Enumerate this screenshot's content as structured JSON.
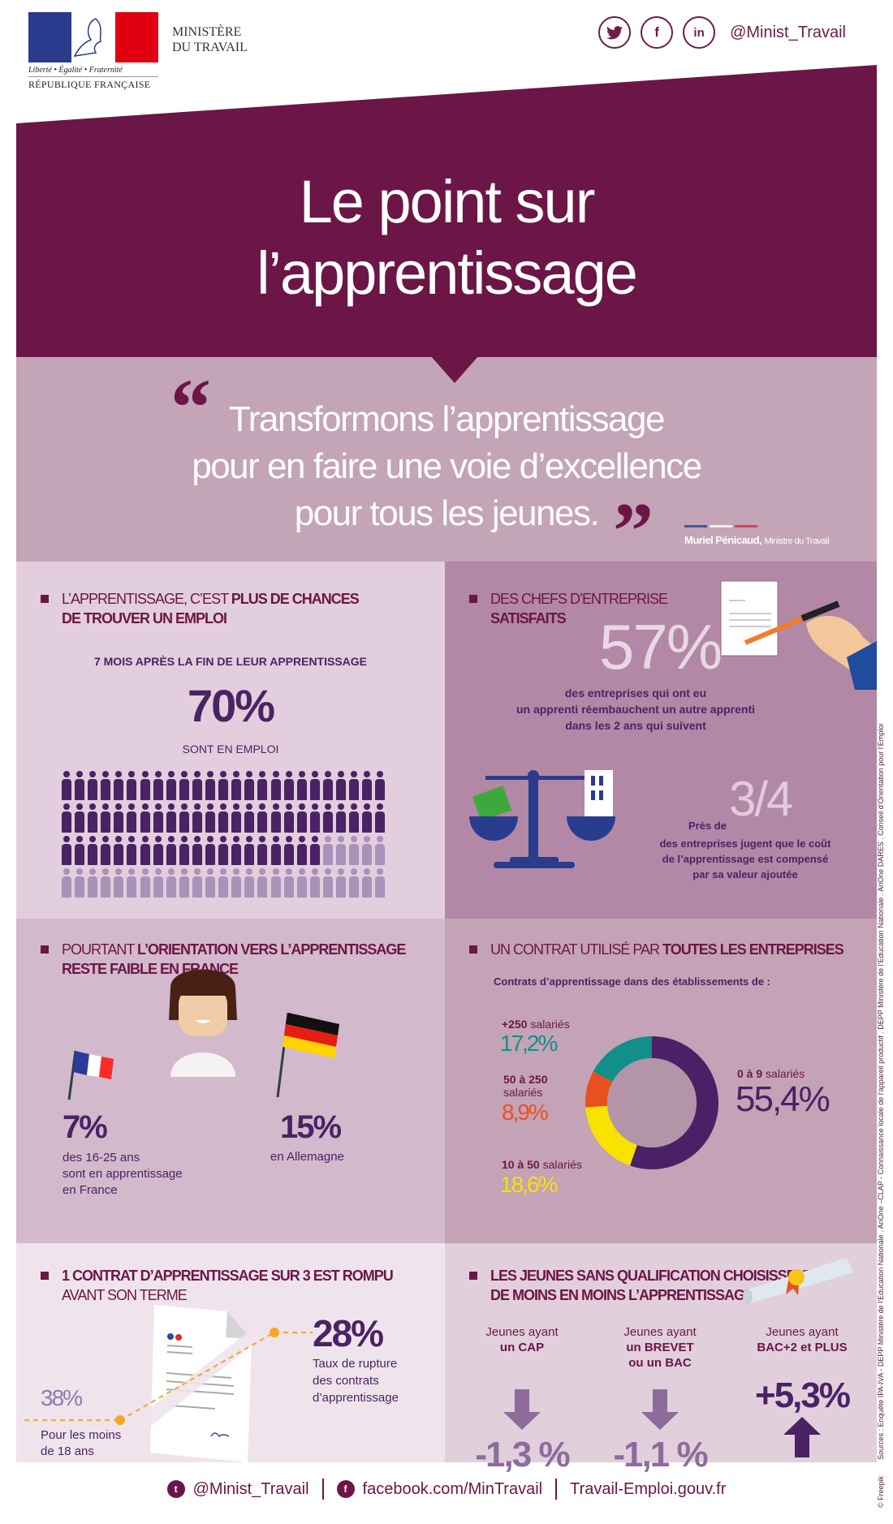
{
  "header": {
    "logo": {
      "motto": "Liberté • Égalité • Fraternité",
      "republic": "RÉPUBLIQUE FRANÇAISE"
    },
    "ministry_line1": "MINISTÈRE",
    "ministry_line2": "DU TRAVAIL",
    "social": {
      "twitter_icon": "twitter",
      "facebook_glyph": "f",
      "linkedin_glyph": "in",
      "handle": "@Minist_Travail"
    }
  },
  "title": {
    "line1": "Le point sur",
    "line2": "l’apprentissage"
  },
  "quote": {
    "open_mark": "“",
    "close_mark": "”",
    "line1": "Transformons l’apprentissage",
    "line2": "pour en faire une voie d’excellence",
    "line3": "pour tous les jeunes.",
    "author_name": "Muriel Pénicaud,",
    "author_role": "Ministre du Travail"
  },
  "panel_employment": {
    "heading_plain": "L’APPRENTISSAGE, C’EST ",
    "heading_bold1": "PLUS DE CHANCES",
    "heading_bold2": "DE TROUVER UN EMPLOI",
    "subtitle": "7 MOIS APRÈS LA FIN DE LEUR APPRENTISSAGE",
    "value": "70%",
    "caption": "SONT EN EMPLOI",
    "people_total": 100,
    "people_highlighted": 70
  },
  "panel_satisfied": {
    "heading_plain": "DES CHEFS D’ENTREPRISE",
    "heading_bold": "SATISFAITS",
    "value1": "57%",
    "caption1_line1": "des entreprises qui ont eu",
    "caption1_line2": "un apprenti réembauchent un autre apprenti",
    "caption1_line3": "dans les 2 ans qui suivent",
    "value2_prefix": "Près de",
    "value2": "3/4",
    "caption2_line1": "des entreprises jugent que le coût",
    "caption2_line2": "de l’apprentissage est compensé",
    "caption2_line3": "par sa valeur ajoutée"
  },
  "panel_orientation": {
    "heading_plain": "POURTANT ",
    "heading_bold1": "L’ORIENTATION VERS L’APPRENTISSAGE",
    "heading_bold2": "RESTE FAIBLE EN FRANCE",
    "france_value": "7%",
    "france_caption_line1": "des 16-25 ans",
    "france_caption_line2": "sont en apprentissage",
    "france_caption_line3": "en France",
    "germany_value": "15%",
    "germany_caption": "en Allemagne"
  },
  "panel_contract": {
    "heading_plain": "UN CONTRAT UTILISÉ PAR ",
    "heading_bold": "TOUTES LES ENTREPRISES",
    "subtitle": "Contrats d’apprentissage dans des établissements de :",
    "segments": [
      {
        "label_bold": "0 à 9",
        "label_rest": " salariés",
        "value": "55,4%",
        "color": "#4a2166"
      },
      {
        "label_bold": "10 à 50",
        "label_rest": " salariés",
        "value": "18,6%",
        "color": "#f7e200"
      },
      {
        "label_bold": "50 à 250",
        "label_rest": "salariés",
        "value": "8,9%",
        "color": "#e8501f"
      },
      {
        "label_bold": "+250",
        "label_rest": " salariés",
        "value": "17,2%",
        "color": "#11908a"
      }
    ]
  },
  "panel_rupture": {
    "heading_bold": "1 CONTRAT D’APPRENTISSAGE SUR 3 EST ROMPU",
    "heading_plain": "AVANT SON TERME",
    "main_value": "28%",
    "main_caption_line1": "Taux de rupture",
    "main_caption_line2": "des contrats",
    "main_caption_line3": "d’apprentissage",
    "minor_value": "38%",
    "minor_caption_line1": "Pour les moins",
    "minor_caption_line2": "de 18 ans"
  },
  "panel_qualification": {
    "heading_line1": "LES JEUNES SANS QUALIFICATION CHOISISSENT",
    "heading_line2": "DE MOINS EN MOINS L’APPRENTISSAGE",
    "columns": [
      {
        "label": "Jeunes ayant",
        "qual_line1": "un CAP",
        "qual_line2": "",
        "value": "-1,3 %",
        "direction": "down"
      },
      {
        "label": "Jeunes ayant",
        "qual_line1": "un BREVET",
        "qual_line2": "ou un BAC",
        "value": "-1,1 %",
        "direction": "down"
      },
      {
        "label": "Jeunes ayant",
        "qual_line1": "BAC+2 et PLUS",
        "qual_line2": "",
        "value": "+5,3%",
        "direction": "up"
      }
    ]
  },
  "footer": {
    "twitter": "@Minist_Travail",
    "facebook": "facebook.com/MinTravail",
    "website": "Travail-Emploi.gouv.fr"
  },
  "sources": "Sources : Enquête IPA-IVA - DEPP Ministère de l’Education Nationale . AriOne –CLAP - Connaissance locale de l’appareil productif . DEPP Ministère de l’Education Nationale . AriOne DARES . Conseil d’Orientation pour l’Emploi",
  "credit": "© Freepik",
  "colors": {
    "brand_plum": "#6b1646",
    "deep_purple": "#4b2264",
    "panel_light": "#e2cedc",
    "panel_mid": "#b288a6"
  },
  "chart_data": {
    "type": "pie",
    "title": "Contrats d’apprentissage dans des établissements de :",
    "categories": [
      "0 à 9 salariés",
      "10 à 50 salariés",
      "50 à 250 salariés",
      "+250 salariés"
    ],
    "values": [
      55.4,
      18.6,
      8.9,
      17.2
    ],
    "colors": [
      "#4a2166",
      "#f7e200",
      "#e8501f",
      "#11908a"
    ],
    "donut": true,
    "legend": "inline labels around donut"
  }
}
